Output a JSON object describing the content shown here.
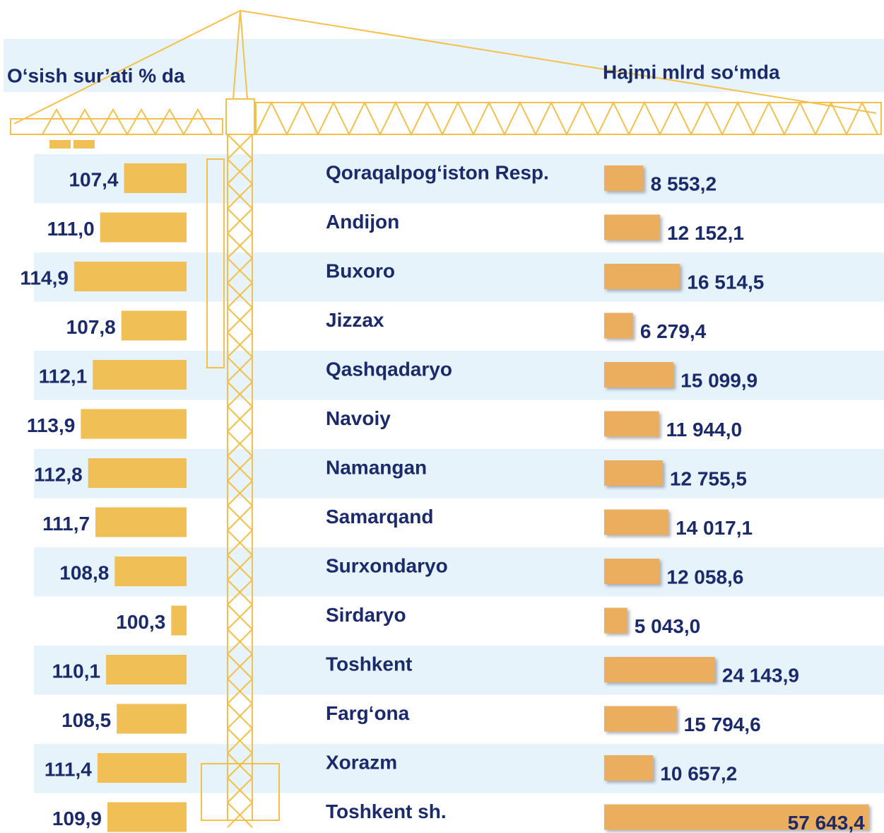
{
  "chart_data": [
    {
      "type": "bar",
      "title": "O‘sish sur’ati % da",
      "categories": [
        "Qoraqalpog‘iston Resp.",
        "Andijon",
        "Buxoro",
        "Jizzax",
        "Qashqadaryo",
        "Navoiy",
        "Namangan",
        "Samarqand",
        "Surxondaryo",
        "Sirdaryo",
        "Toshkent",
        "Farg‘ona",
        "Xorazm",
        "Toshkent sh."
      ],
      "values": [
        107.4,
        111.0,
        114.9,
        107.8,
        112.1,
        113.9,
        112.8,
        111.7,
        108.8,
        100.3,
        110.1,
        108.5,
        111.4,
        109.9
      ],
      "value_labels": [
        "107,4",
        "111,0",
        "114,9",
        "107,8",
        "112,1",
        "113,9",
        "112,8",
        "111,7",
        "108,8",
        "100,3",
        "110,1",
        "108,5",
        "111,4",
        "109,9"
      ],
      "color": "#f0bf55",
      "xlim": [
        98,
        115
      ]
    },
    {
      "type": "bar",
      "title": "Hajmi mlrd so‘mda",
      "values": [
        8553.2,
        12152.1,
        16514.5,
        6279.4,
        15099.9,
        11944.0,
        12755.5,
        14017.1,
        12058.6,
        5043.0,
        24143.9,
        15794.6,
        10657.2,
        57643.4
      ],
      "value_labels": [
        "8 553,2",
        "12 152,1",
        "16 514,5",
        "6 279,4",
        "15 099,9",
        "11 944,0",
        "12 755,5",
        "14 017,1",
        "12 058,6",
        "5 043,0",
        "24 143,9",
        "15 794,6",
        "10 657,2",
        "57 643,4"
      ],
      "color": "#ebae5e",
      "xlim": [
        0,
        60000
      ]
    }
  ]
}
